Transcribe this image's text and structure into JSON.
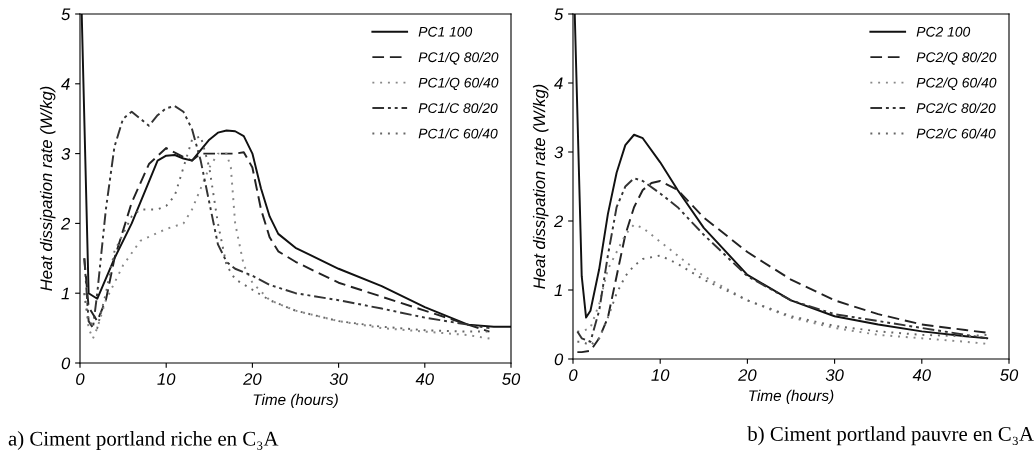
{
  "chart_data": [
    {
      "type": "line",
      "xlabel": "Time (hours)",
      "ylabel": "Heat dissipation rate (W/kg)",
      "xlim": [
        0,
        50
      ],
      "ylim": [
        0,
        5
      ],
      "xticks": [
        0,
        10,
        20,
        30,
        40,
        50
      ],
      "yticks": [
        0,
        1,
        2,
        3,
        4,
        5
      ],
      "grid": false,
      "legend": "top right",
      "annotations": [
        "a) Ciment portland riche en C₃A"
      ],
      "series": [
        {
          "name": "PC1 100",
          "color": "#111111",
          "line_style": "solid",
          "x": [
            0.2,
            1,
            2,
            4,
            6,
            8,
            9,
            10,
            11,
            12,
            13,
            14,
            15,
            16,
            17,
            18,
            19,
            20,
            21,
            22,
            23,
            25,
            30,
            35,
            40,
            45,
            48,
            50
          ],
          "values": [
            5,
            1.0,
            0.92,
            1.5,
            2.0,
            2.6,
            2.9,
            2.97,
            2.98,
            2.93,
            2.9,
            3.05,
            3.2,
            3.3,
            3.33,
            3.32,
            3.25,
            3.0,
            2.5,
            2.1,
            1.85,
            1.65,
            1.35,
            1.1,
            0.8,
            0.55,
            0.52,
            0.52
          ]
        },
        {
          "name": "PC1/Q 80/20",
          "color": "#222222",
          "line_style": "dashed",
          "x": [
            0.5,
            1,
            2,
            3,
            4,
            6,
            8,
            10,
            12,
            13,
            14,
            16,
            18,
            19,
            20,
            21,
            22,
            23,
            25,
            30,
            35,
            40,
            45,
            47.5
          ],
          "values": [
            1.5,
            0.8,
            0.6,
            0.9,
            1.5,
            2.3,
            2.85,
            3.08,
            2.95,
            2.9,
            3.0,
            3.0,
            3.0,
            3.02,
            2.8,
            2.2,
            1.8,
            1.6,
            1.45,
            1.15,
            0.95,
            0.75,
            0.55,
            0.45
          ]
        },
        {
          "name": "PC1/Q 60/40",
          "color": "#888888",
          "line_style": "dotted",
          "x": [
            0.5,
            1,
            1.5,
            2,
            3,
            5,
            7,
            10,
            12,
            13,
            14,
            15,
            16,
            17,
            17.5,
            18,
            19,
            20,
            22,
            25,
            30,
            35,
            40,
            45,
            47.5
          ],
          "values": [
            1.0,
            0.5,
            0.35,
            0.5,
            0.9,
            1.4,
            1.75,
            1.92,
            2.0,
            2.2,
            2.5,
            2.8,
            3.0,
            3.0,
            2.8,
            2.0,
            1.4,
            1.15,
            0.9,
            0.75,
            0.6,
            0.5,
            0.45,
            0.4,
            0.35
          ]
        },
        {
          "name": "PC1/C 80/20",
          "color": "#333333",
          "line_style": "dashdot",
          "x": [
            0.5,
            1,
            1.5,
            2,
            3,
            4,
            5,
            6,
            7,
            8,
            9,
            10,
            11,
            12,
            13,
            14,
            15,
            16,
            17,
            18,
            20,
            22,
            25,
            30,
            35,
            40,
            45,
            47.5
          ],
          "values": [
            1.5,
            0.6,
            0.5,
            1.0,
            2.2,
            3.1,
            3.5,
            3.6,
            3.5,
            3.4,
            3.55,
            3.65,
            3.68,
            3.6,
            3.35,
            2.9,
            2.3,
            1.7,
            1.45,
            1.35,
            1.25,
            1.12,
            1.0,
            0.9,
            0.78,
            0.65,
            0.55,
            0.5
          ]
        },
        {
          "name": "PC1/C 60/40",
          "color": "#666666",
          "line_style": "dotted",
          "x": [
            0.5,
            1,
            2,
            3,
            4,
            6,
            7,
            9,
            10,
            11,
            12,
            13,
            14,
            15,
            16,
            17,
            18,
            20,
            22,
            25,
            30,
            35,
            40,
            45,
            47.5
          ],
          "values": [
            1.0,
            0.6,
            0.5,
            1.0,
            1.6,
            2.1,
            2.2,
            2.2,
            2.25,
            2.4,
            2.8,
            3.2,
            3.25,
            2.8,
            2.0,
            1.4,
            1.2,
            1.05,
            0.9,
            0.75,
            0.6,
            0.52,
            0.47,
            0.45,
            0.45
          ]
        }
      ]
    },
    {
      "type": "line",
      "xlabel": "Time (hours)",
      "ylabel": "Heat dissipation rate (W/kg)",
      "xlim": [
        0,
        50
      ],
      "ylim": [
        0,
        5
      ],
      "xticks": [
        0,
        10,
        20,
        30,
        40,
        50
      ],
      "yticks": [
        0,
        1,
        2,
        3,
        4,
        5
      ],
      "grid": false,
      "legend": "top right",
      "annotations": [
        "b) Ciment portland pauvre en C₃A"
      ],
      "series": [
        {
          "name": "PC2 100",
          "color": "#111111",
          "line_style": "solid",
          "x": [
            0.2,
            1,
            1.5,
            2,
            3,
            4,
            5,
            6,
            7,
            8,
            10,
            12,
            15,
            20,
            25,
            30,
            35,
            40,
            45,
            47.5
          ],
          "values": [
            5,
            1.2,
            0.6,
            0.7,
            1.3,
            2.1,
            2.7,
            3.1,
            3.25,
            3.2,
            2.85,
            2.45,
            1.9,
            1.22,
            0.85,
            0.62,
            0.5,
            0.4,
            0.33,
            0.3
          ]
        },
        {
          "name": "PC2/Q 80/20",
          "color": "#222222",
          "line_style": "dashed",
          "x": [
            0.5,
            1,
            2,
            3,
            4,
            5,
            6,
            7,
            8,
            9,
            10,
            12,
            15,
            20,
            25,
            30,
            35,
            40,
            45,
            47.5
          ],
          "values": [
            0.1,
            0.1,
            0.12,
            0.3,
            0.6,
            1.2,
            1.8,
            2.2,
            2.45,
            2.55,
            2.58,
            2.45,
            2.05,
            1.55,
            1.15,
            0.85,
            0.65,
            0.5,
            0.42,
            0.38
          ]
        },
        {
          "name": "PC2/Q 60/40",
          "color": "#888888",
          "line_style": "dotted",
          "x": [
            0.5,
            1,
            2,
            3,
            4,
            6,
            7,
            8,
            10,
            12,
            15,
            20,
            25,
            30,
            35,
            40,
            45,
            47.5
          ],
          "values": [
            0.4,
            0.4,
            0.45,
            0.8,
            1.3,
            1.8,
            1.95,
            1.9,
            1.7,
            1.5,
            1.2,
            0.85,
            0.6,
            0.45,
            0.35,
            0.3,
            0.25,
            0.22
          ]
        },
        {
          "name": "PC2/C 80/20",
          "color": "#333333",
          "line_style": "dashdot",
          "x": [
            0.5,
            1,
            2,
            3,
            4,
            5,
            6,
            7,
            8,
            10,
            12,
            15,
            20,
            25,
            30,
            35,
            40,
            45,
            47.5
          ],
          "values": [
            0.4,
            0.3,
            0.25,
            0.7,
            1.5,
            2.2,
            2.5,
            2.62,
            2.58,
            2.4,
            2.2,
            1.8,
            1.2,
            0.85,
            0.65,
            0.55,
            0.45,
            0.35,
            0.3
          ]
        },
        {
          "name": "PC2/C 60/40",
          "color": "#666666",
          "line_style": "dotted",
          "x": [
            0.5,
            1,
            2,
            3,
            4,
            5,
            6,
            7,
            8,
            10,
            12,
            15,
            20,
            25,
            30,
            35,
            40,
            45,
            47.5
          ],
          "values": [
            0.25,
            0.25,
            0.2,
            0.3,
            0.6,
            0.95,
            1.2,
            1.35,
            1.45,
            1.5,
            1.38,
            1.15,
            0.85,
            0.62,
            0.48,
            0.4,
            0.35,
            0.33,
            0.35
          ]
        }
      ]
    }
  ]
}
